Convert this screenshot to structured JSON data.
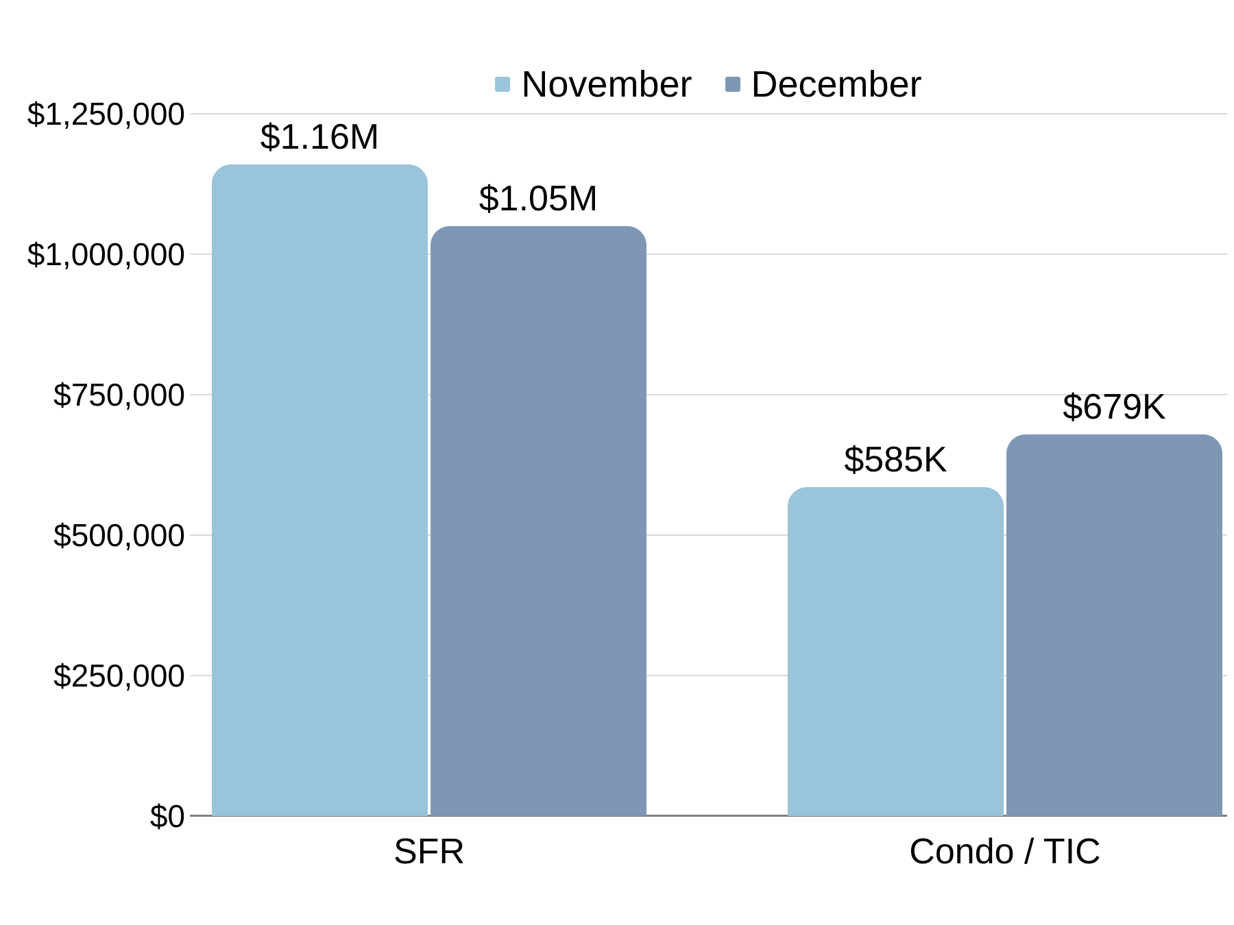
{
  "chart_data": {
    "type": "bar",
    "title": "",
    "xlabel": "",
    "ylabel": "",
    "categories": [
      "SFR",
      "Condo / TIC"
    ],
    "series": [
      {
        "name": "November",
        "color": "#9AC3DC",
        "values": [
          1160000,
          585000
        ],
        "labels": [
          "$1.16M",
          "$585K"
        ]
      },
      {
        "name": "December",
        "color": "#7E97B5",
        "values": [
          1050000,
          679000
        ],
        "labels": [
          "$1.05M",
          "$679K"
        ]
      }
    ],
    "yticks": [
      {
        "label": "$1,250,000",
        "value": 1250000
      },
      {
        "label": "$1,000,000",
        "value": 1000000
      },
      {
        "label": "$750,000",
        "value": 750000
      },
      {
        "label": "$500,000",
        "value": 500000
      },
      {
        "label": "$250,000",
        "value": 250000
      },
      {
        "label": "$0",
        "value": 0
      }
    ],
    "ylim": [
      0,
      1250000
    ],
    "grid": true,
    "legend_position": "top-center",
    "colors": {
      "gridline": "#D9D9D9",
      "axis_line": "#808080",
      "text": "#000000",
      "background": "#FFFFFF"
    }
  }
}
